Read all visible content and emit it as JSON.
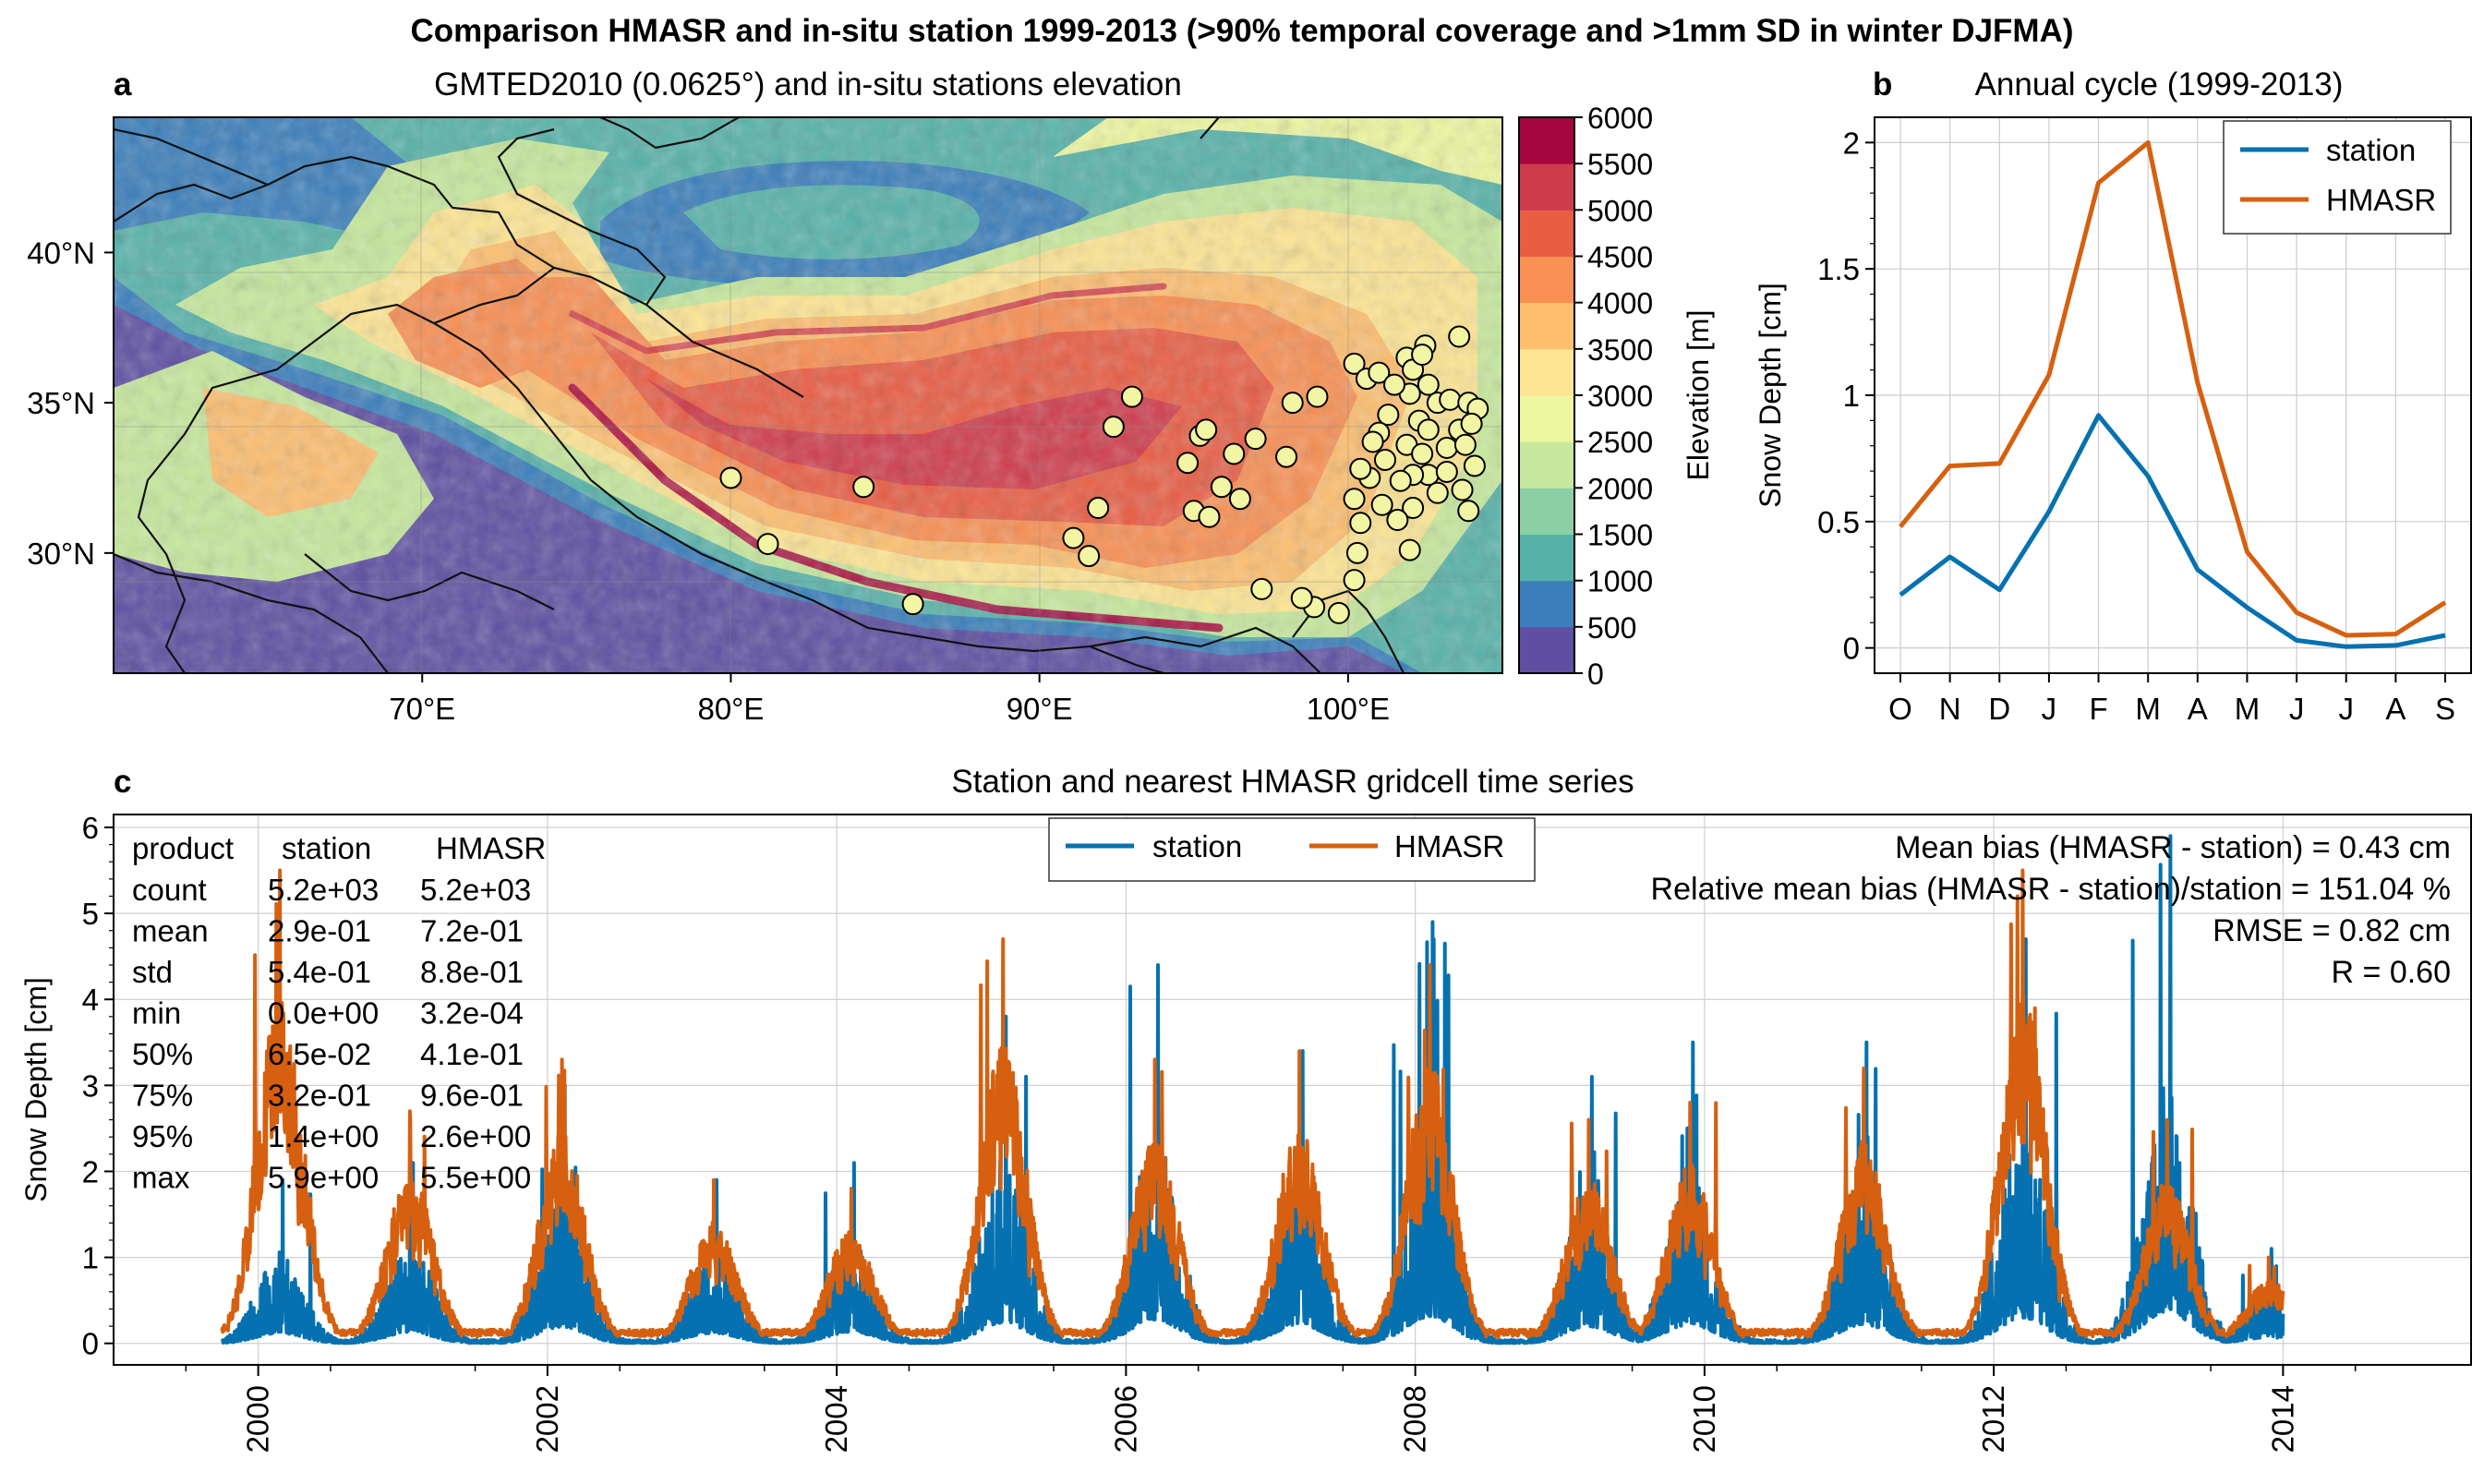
{
  "figure": {
    "suptitle": "Comparison HMASR and in-situ station 1999-2013 (>90% temporal coverage and >1mm SD in winter DJFMA)"
  },
  "colors": {
    "station": "#0571b0",
    "hmasr": "#d6600f",
    "elevation_levels": [
      "#5e4fa2",
      "#3a7ebb",
      "#56b2a9",
      "#8ccfa4",
      "#c6e89c",
      "#edf7a0",
      "#fde593",
      "#fdbe6f",
      "#f88f53",
      "#e85d44",
      "#cf3c4c",
      "#a6053e"
    ]
  },
  "chart_data": [
    {
      "panel": "a",
      "type": "heatmap",
      "title": "GMTED2010 (0.0625°) and in-situ stations elevation",
      "x_ticklabels": [
        "70°E",
        "80°E",
        "90°E",
        "100°E"
      ],
      "x_ticks": [
        70,
        80,
        90,
        100
      ],
      "y_ticklabels": [
        "40°N",
        "35°N",
        "30°N"
      ],
      "y_ticks": [
        40,
        35,
        30
      ],
      "lon_range": [
        60,
        105
      ],
      "lat_range": [
        26,
        44.5
      ],
      "colorbar": {
        "label": "Elevation [m]",
        "ticks": [
          "0",
          "500",
          "1000",
          "1500",
          "2000",
          "2500",
          "3000",
          "3500",
          "4000",
          "4500",
          "5000",
          "5500",
          "6000"
        ],
        "range": [
          0,
          6000
        ]
      },
      "stations": [
        [
          80.0,
          32.5
        ],
        [
          81.2,
          30.3
        ],
        [
          84.3,
          32.2
        ],
        [
          85.9,
          28.3
        ],
        [
          91.1,
          30.5
        ],
        [
          91.6,
          29.9
        ],
        [
          91.9,
          31.5
        ],
        [
          92.4,
          34.2
        ],
        [
          93.0,
          35.2
        ],
        [
          94.8,
          33.0
        ],
        [
          95.2,
          33.9
        ],
        [
          95.4,
          34.1
        ],
        [
          95.0,
          31.4
        ],
        [
          95.5,
          31.2
        ],
        [
          95.9,
          32.2
        ],
        [
          96.3,
          33.3
        ],
        [
          96.5,
          31.8
        ],
        [
          97.0,
          33.8
        ],
        [
          97.2,
          28.8
        ],
        [
          98.2,
          35.0
        ],
        [
          98.0,
          33.2
        ],
        [
          98.9,
          28.2
        ],
        [
          98.5,
          28.5
        ],
        [
          99.0,
          35.2
        ],
        [
          100.2,
          36.3
        ],
        [
          100.6,
          35.8
        ],
        [
          101.0,
          36.0
        ],
        [
          101.2,
          33.1
        ],
        [
          101.3,
          34.6
        ],
        [
          101.0,
          34.0
        ],
        [
          100.8,
          33.7
        ],
        [
          100.7,
          32.5
        ],
        [
          100.2,
          31.8
        ],
        [
          100.4,
          31.0
        ],
        [
          100.3,
          30.0
        ],
        [
          100.2,
          29.1
        ],
        [
          99.7,
          28.0
        ],
        [
          101.9,
          36.5
        ],
        [
          102.5,
          36.9
        ],
        [
          102.1,
          36.1
        ],
        [
          102.4,
          36.6
        ],
        [
          103.6,
          37.2
        ],
        [
          102.0,
          35.3
        ],
        [
          102.6,
          35.6
        ],
        [
          102.9,
          35.0
        ],
        [
          103.3,
          35.1
        ],
        [
          103.9,
          35.0
        ],
        [
          104.2,
          34.8
        ],
        [
          102.3,
          34.4
        ],
        [
          102.6,
          34.1
        ],
        [
          103.6,
          34.1
        ],
        [
          104.0,
          34.3
        ],
        [
          101.9,
          33.6
        ],
        [
          102.4,
          33.3
        ],
        [
          103.2,
          33.5
        ],
        [
          103.8,
          33.6
        ],
        [
          104.1,
          32.9
        ],
        [
          102.6,
          32.6
        ],
        [
          103.2,
          32.7
        ],
        [
          102.1,
          32.6
        ],
        [
          102.9,
          32.0
        ],
        [
          103.7,
          32.1
        ],
        [
          102.1,
          31.5
        ],
        [
          101.7,
          32.4
        ],
        [
          101.1,
          31.6
        ],
        [
          101.6,
          31.1
        ],
        [
          103.9,
          31.4
        ],
        [
          102.0,
          30.1
        ],
        [
          100.4,
          32.8
        ],
        [
          101.5,
          35.6
        ]
      ]
    },
    {
      "panel": "b",
      "type": "line",
      "title": "Annual cycle (1999-2013)",
      "ylabel": "Snow Depth [cm]",
      "categories": [
        "O",
        "N",
        "D",
        "J",
        "F",
        "M",
        "A",
        "M",
        "J",
        "J",
        "A",
        "S"
      ],
      "yticks": [
        "0",
        "0.5",
        "1",
        "1.5",
        "2"
      ],
      "ylim": [
        -0.1,
        2.1
      ],
      "series": [
        {
          "name": "station",
          "values": [
            0.21,
            0.36,
            0.23,
            0.54,
            0.92,
            0.68,
            0.31,
            0.16,
            0.03,
            0.005,
            0.01,
            0.05
          ]
        },
        {
          "name": "HMASR",
          "values": [
            0.48,
            0.72,
            0.73,
            1.08,
            1.84,
            2.0,
            1.05,
            0.38,
            0.14,
            0.05,
            0.055,
            0.18
          ]
        }
      ],
      "legend": "upper right"
    },
    {
      "panel": "c",
      "type": "line",
      "title": "Station and nearest HMASR gridcell time series",
      "ylabel": "Snow Depth [cm]",
      "yticks": [
        "0",
        "1",
        "2",
        "3",
        "4",
        "5",
        "6"
      ],
      "ylim": [
        -0.25,
        6.15
      ],
      "x_ticklabels": [
        "2000",
        "2002",
        "2004",
        "2006",
        "2008",
        "2010",
        "2012",
        "2014"
      ],
      "x_ticks": [
        2000,
        2002,
        2004,
        2006,
        2008,
        2010,
        2012,
        2014
      ],
      "xlim": [
        1999.0,
        2015.3
      ],
      "legend": "upper center",
      "winter_peaks": [
        {
          "center": 2000.15,
          "hmasr": 5.5,
          "station": 1.9
        },
        {
          "center": 2001.05,
          "hmasr": 2.7,
          "station": 2.1
        },
        {
          "center": 2002.1,
          "hmasr": 3.3,
          "station": 3.0
        },
        {
          "center": 2003.15,
          "hmasr": 1.9,
          "station": 1.9
        },
        {
          "center": 2004.1,
          "hmasr": 1.8,
          "station": 2.1
        },
        {
          "center": 2005.15,
          "hmasr": 4.7,
          "station": 3.8
        },
        {
          "center": 2006.2,
          "hmasr": 3.3,
          "station": 4.4
        },
        {
          "center": 2007.2,
          "hmasr": 3.4,
          "station": 3.4
        },
        {
          "center": 2008.1,
          "hmasr": 4.4,
          "station": 4.9
        },
        {
          "center": 2009.2,
          "hmasr": 2.6,
          "station": 3.1
        },
        {
          "center": 2009.9,
          "hmasr": 2.8,
          "station": 3.5
        },
        {
          "center": 2011.1,
          "hmasr": 3.2,
          "station": 3.5
        },
        {
          "center": 2012.2,
          "hmasr": 5.5,
          "station": 4.7
        },
        {
          "center": 2013.2,
          "hmasr": 2.6,
          "station": 5.9
        },
        {
          "center": 2013.9,
          "hmasr": 1.0,
          "station": 1.1
        }
      ],
      "stats_table": {
        "header": [
          "product",
          "station",
          "HMASR"
        ],
        "rows": [
          [
            "count",
            "5.2e+03",
            "5.2e+03"
          ],
          [
            "mean",
            "2.9e-01",
            "7.2e-01"
          ],
          [
            "std",
            "5.4e-01",
            "8.8e-01"
          ],
          [
            "min",
            "0.0e+00",
            "3.2e-04"
          ],
          [
            "50%",
            "6.5e-02",
            "4.1e-01"
          ],
          [
            "75%",
            "3.2e-01",
            "9.6e-01"
          ],
          [
            "95%",
            "1.4e+00",
            "2.6e+00"
          ],
          [
            "max",
            "5.9e+00",
            "5.5e+00"
          ]
        ]
      },
      "metrics": [
        "Mean bias (HMASR - station) = 0.43 cm",
        "Relative mean bias (HMASR - station)/station = 151.04 %",
        "RMSE = 0.82 cm",
        "R = 0.60"
      ]
    }
  ]
}
